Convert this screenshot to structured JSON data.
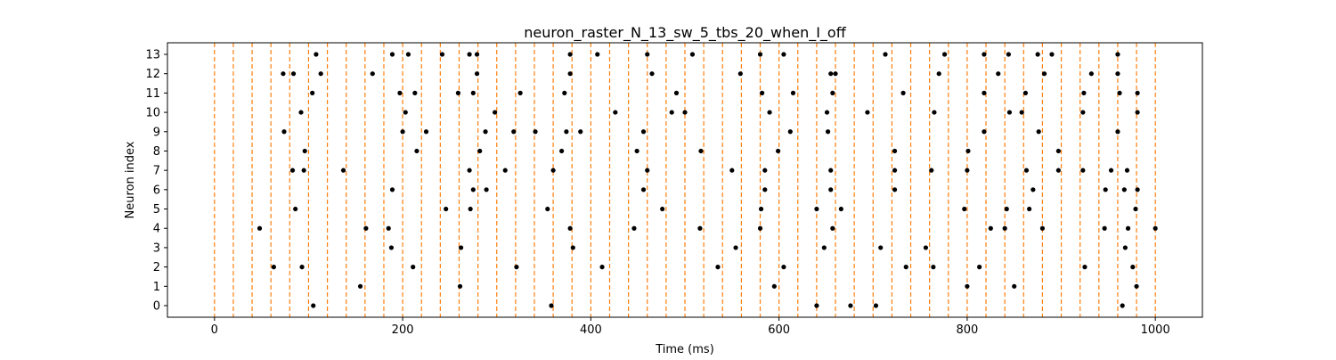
{
  "chart_data": {
    "type": "scatter",
    "title": "neuron_raster_N_13_sw_5_tbs_20_when_I_off",
    "xlabel": "Time (ms)",
    "ylabel": "Neuron index",
    "xlim": [
      -50,
      1050
    ],
    "ylim": [
      -0.6,
      13.6
    ],
    "xticks": [
      0,
      200,
      400,
      600,
      800,
      1000
    ],
    "yticks": [
      0,
      1,
      2,
      3,
      4,
      5,
      6,
      7,
      8,
      9,
      10,
      11,
      12,
      13
    ],
    "grid": false,
    "legend": "none",
    "vlines": {
      "values": [
        0,
        20,
        40,
        60,
        80,
        100,
        120,
        140,
        160,
        180,
        200,
        220,
        240,
        260,
        280,
        300,
        320,
        340,
        360,
        380,
        400,
        420,
        440,
        460,
        480,
        500,
        520,
        540,
        560,
        580,
        600,
        620,
        640,
        660,
        680,
        700,
        720,
        740,
        760,
        780,
        800,
        820,
        840,
        860,
        880,
        900,
        920,
        940,
        960,
        980,
        1000
      ],
      "color": "#ff7f0e",
      "style": "dashed"
    },
    "marker_color": "#000000",
    "spikes": [
      {
        "neuron": 13,
        "times": [
          108,
          189,
          206,
          242,
          271,
          279,
          378,
          407,
          460,
          508,
          580,
          605,
          713,
          776,
          818,
          844,
          875,
          890,
          960
        ]
      },
      {
        "neuron": 12,
        "times": [
          73,
          84,
          113,
          168,
          279,
          378,
          465,
          559,
          655,
          660,
          770,
          833,
          882,
          932,
          960
        ]
      },
      {
        "neuron": 11,
        "times": [
          104,
          197,
          213,
          259,
          275,
          325,
          372,
          491,
          582,
          615,
          657,
          732,
          818,
          862,
          924,
          962,
          981
        ]
      },
      {
        "neuron": 10,
        "times": [
          92,
          203,
          298,
          426,
          486,
          500,
          590,
          651,
          694,
          765,
          845,
          858,
          923,
          981
        ]
      },
      {
        "neuron": 9,
        "times": [
          74,
          200,
          225,
          288,
          318,
          341,
          374,
          389,
          456,
          612,
          652,
          818,
          876,
          960
        ]
      },
      {
        "neuron": 8,
        "times": [
          96,
          215,
          282,
          369,
          449,
          517,
          599,
          723,
          801,
          897
        ]
      },
      {
        "neuron": 7,
        "times": [
          83,
          95,
          137,
          271,
          309,
          360,
          460,
          550,
          585,
          655,
          723,
          762,
          800,
          863,
          897,
          923,
          953,
          970
        ]
      },
      {
        "neuron": 6,
        "times": [
          189,
          275,
          289,
          456,
          585,
          655,
          723,
          870,
          947,
          967,
          981
        ]
      },
      {
        "neuron": 5,
        "times": [
          86,
          246,
          272,
          354,
          476,
          581,
          640,
          666,
          797,
          842,
          866,
          979
        ]
      },
      {
        "neuron": 4,
        "times": [
          48,
          161,
          185,
          378,
          446,
          516,
          580,
          657,
          825,
          840,
          880,
          946,
          971,
          1000
        ]
      },
      {
        "neuron": 3,
        "times": [
          188,
          262,
          381,
          554,
          648,
          708,
          756,
          968
        ]
      },
      {
        "neuron": 2,
        "times": [
          63,
          93,
          211,
          321,
          412,
          535,
          605,
          735,
          764,
          813,
          925,
          976
        ]
      },
      {
        "neuron": 1,
        "times": [
          155,
          261,
          595,
          800,
          850,
          980
        ]
      },
      {
        "neuron": 0,
        "times": [
          105,
          358,
          640,
          676,
          703,
          965
        ]
      }
    ]
  }
}
